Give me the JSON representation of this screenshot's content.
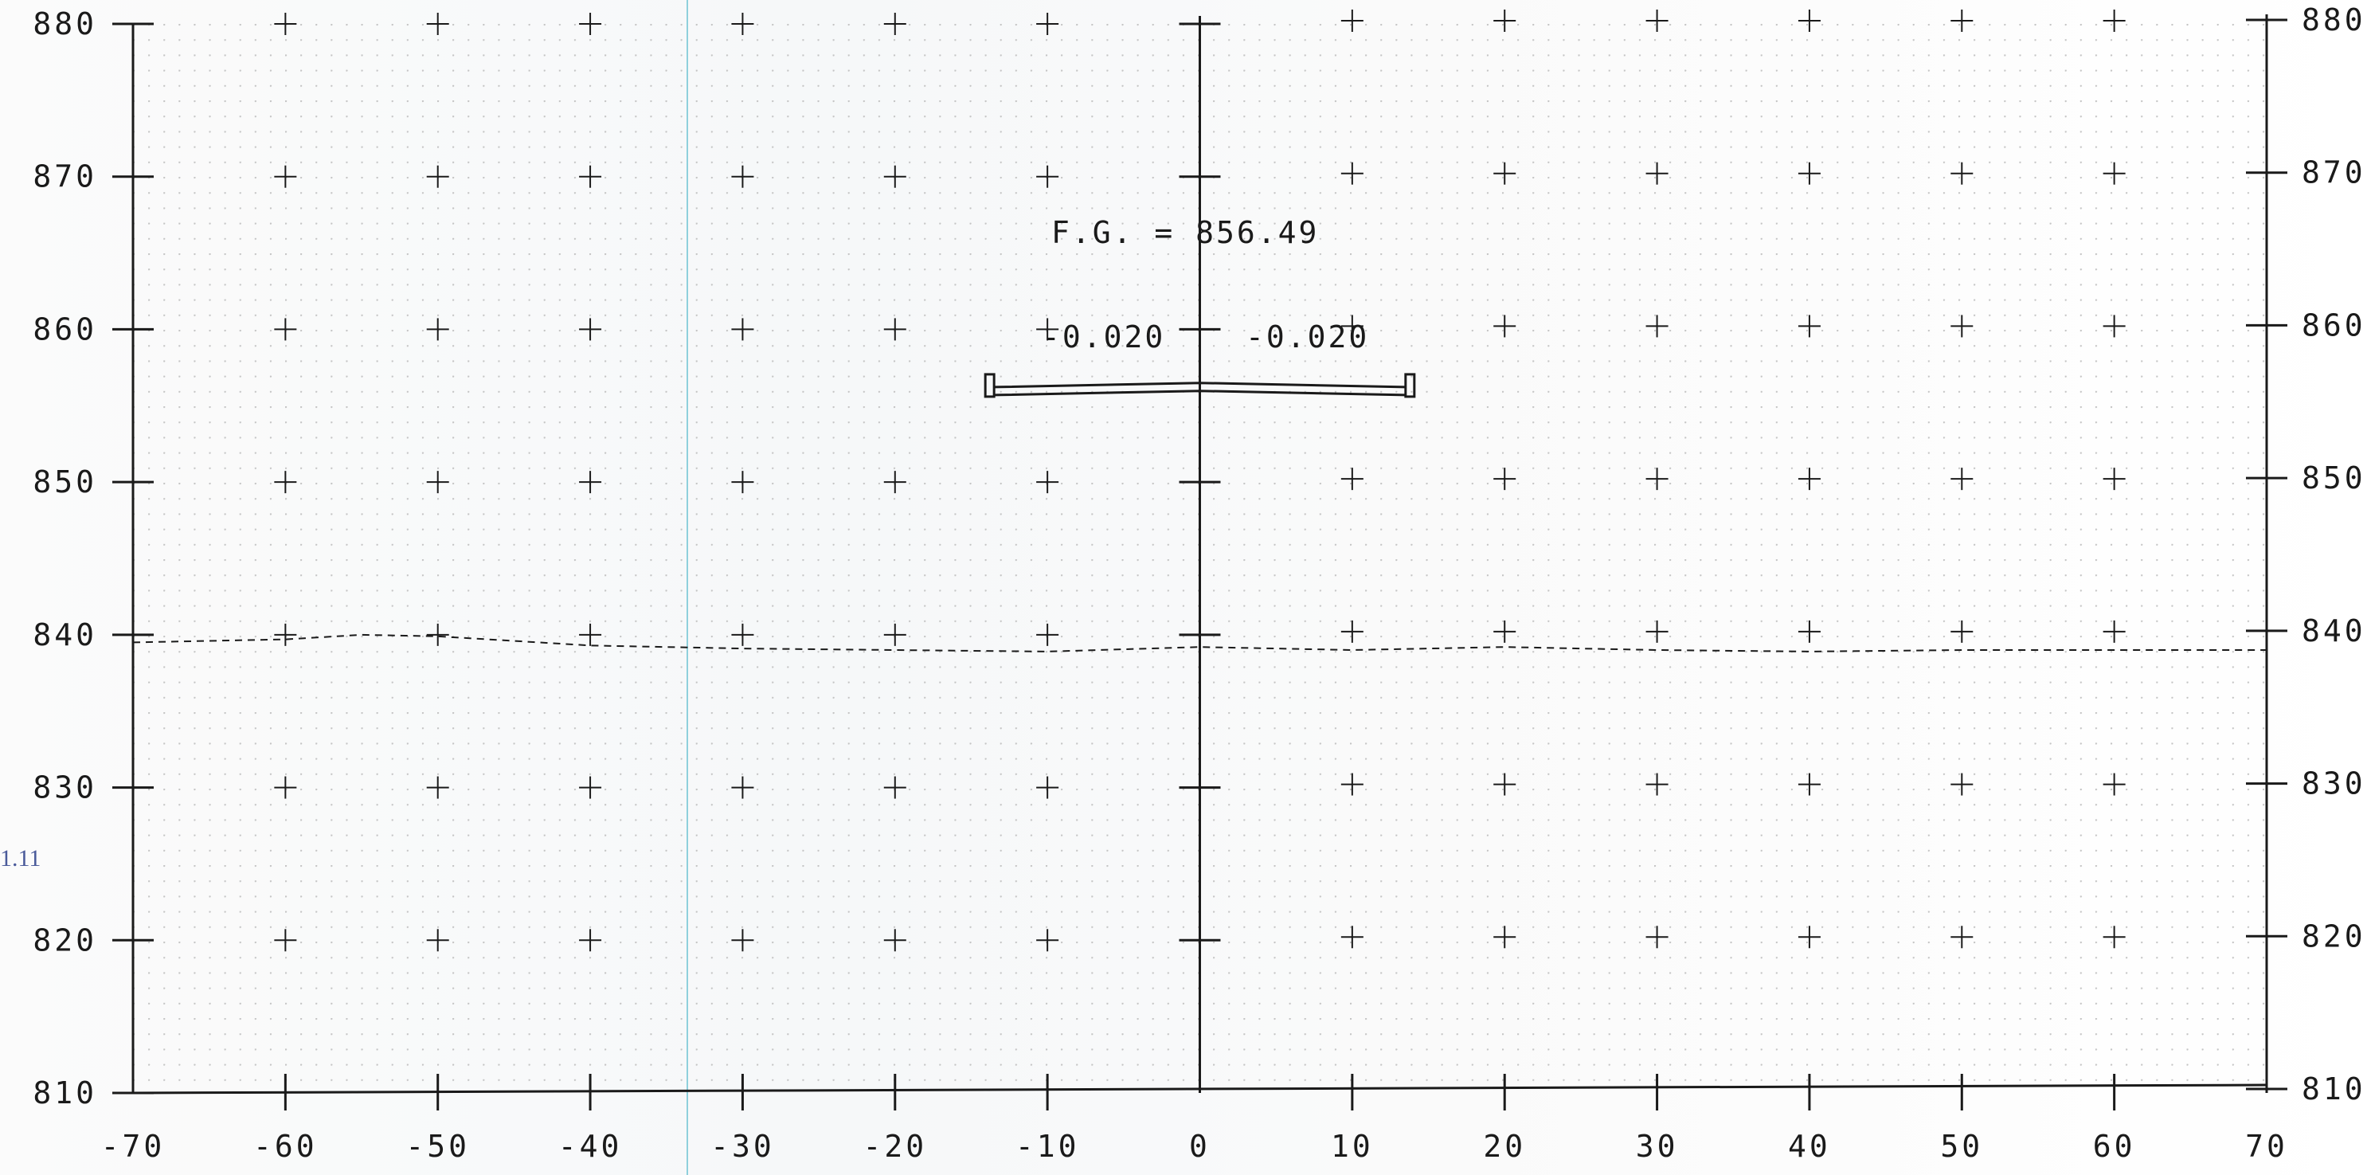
{
  "drawing": {
    "x_ticks": [
      "-70",
      "-60",
      "-50",
      "-40",
      "-30",
      "-20",
      "-10",
      "0",
      "10",
      "20",
      "30",
      "40",
      "50",
      "60",
      "70"
    ],
    "y_ticks": [
      "880",
      "870",
      "860",
      "850",
      "840",
      "830",
      "820",
      "810"
    ],
    "fg_label": "F.G. = 856.49",
    "slope_left": "-0.020",
    "slope_right": "-0.020",
    "margin_note": "1.11",
    "colors": {
      "ink": "#1a1a1a",
      "blue_line": "#8fd0dc",
      "paper": "#ffffff",
      "margin_ink": "#4a5a9a"
    }
  },
  "chart_data": {
    "type": "line",
    "title": "",
    "xlabel": "",
    "ylabel": "",
    "xlim": [
      -70,
      70
    ],
    "ylim": [
      810,
      880
    ],
    "grid": true,
    "series": [
      {
        "values": [
          [
            -70,
            839.5
          ],
          [
            -60,
            839.7
          ],
          [
            -55,
            840.0
          ],
          [
            -50,
            839.9
          ],
          [
            -40,
            839.3
          ],
          [
            -30,
            839.1
          ],
          [
            -20,
            839.0
          ],
          [
            -10,
            838.9
          ],
          [
            0,
            839.2
          ],
          [
            10,
            839.0
          ],
          [
            20,
            839.2
          ],
          [
            30,
            839.0
          ],
          [
            40,
            838.9
          ],
          [
            50,
            839.0
          ],
          [
            60,
            839.0
          ],
          [
            70,
            839.0
          ]
        ]
      },
      {
        "values": [
          [
            -13.5,
            856.22
          ],
          [
            0,
            856.49
          ],
          [
            13.5,
            856.22
          ]
        ]
      }
    ]
  }
}
